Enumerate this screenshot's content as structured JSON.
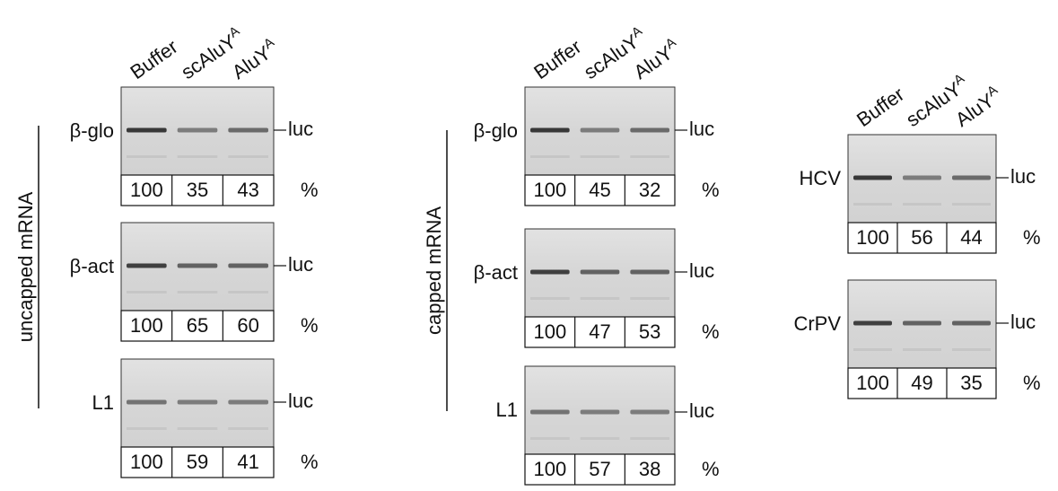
{
  "panels": [
    {
      "group_label": "uncapped mRNA",
      "columns": [
        {
          "text": "Buffer"
        },
        {
          "text": "scAluY",
          "sup": "A"
        },
        {
          "text": "AluY",
          "sup": "A"
        }
      ],
      "rows": [
        {
          "label": "β-glo",
          "band": "luc",
          "values": [
            "100",
            "35",
            "43"
          ],
          "unit": "%"
        },
        {
          "label": "β-act",
          "band": "luc",
          "values": [
            "100",
            "65",
            "60"
          ],
          "unit": "%"
        },
        {
          "label": "L1",
          "band": "luc",
          "values": [
            "100",
            "59",
            "41"
          ],
          "unit": "%"
        }
      ]
    },
    {
      "group_label": "capped mRNA",
      "columns": [
        {
          "text": "Buffer"
        },
        {
          "text": "scAluY",
          "sup": "A"
        },
        {
          "text": "AluY",
          "sup": "A"
        }
      ],
      "rows": [
        {
          "label": "β-glo",
          "band": "luc",
          "values": [
            "100",
            "45",
            "32"
          ],
          "unit": "%"
        },
        {
          "label": "β-act",
          "band": "luc",
          "values": [
            "100",
            "47",
            "53"
          ],
          "unit": "%"
        },
        {
          "label": "L1",
          "band": "luc",
          "values": [
            "100",
            "57",
            "38"
          ],
          "unit": "%"
        }
      ]
    },
    {
      "columns": [
        {
          "text": "Buffer"
        },
        {
          "text": "scAluY",
          "sup": "A"
        },
        {
          "text": "AluY",
          "sup": "A"
        }
      ],
      "rows": [
        {
          "label": "HCV",
          "band": "luc",
          "values": [
            "100",
            "56",
            "44"
          ],
          "unit": "%"
        },
        {
          "label": "CrPV",
          "band": "luc",
          "values": [
            "100",
            "49",
            "35"
          ],
          "unit": "%"
        }
      ]
    }
  ]
}
